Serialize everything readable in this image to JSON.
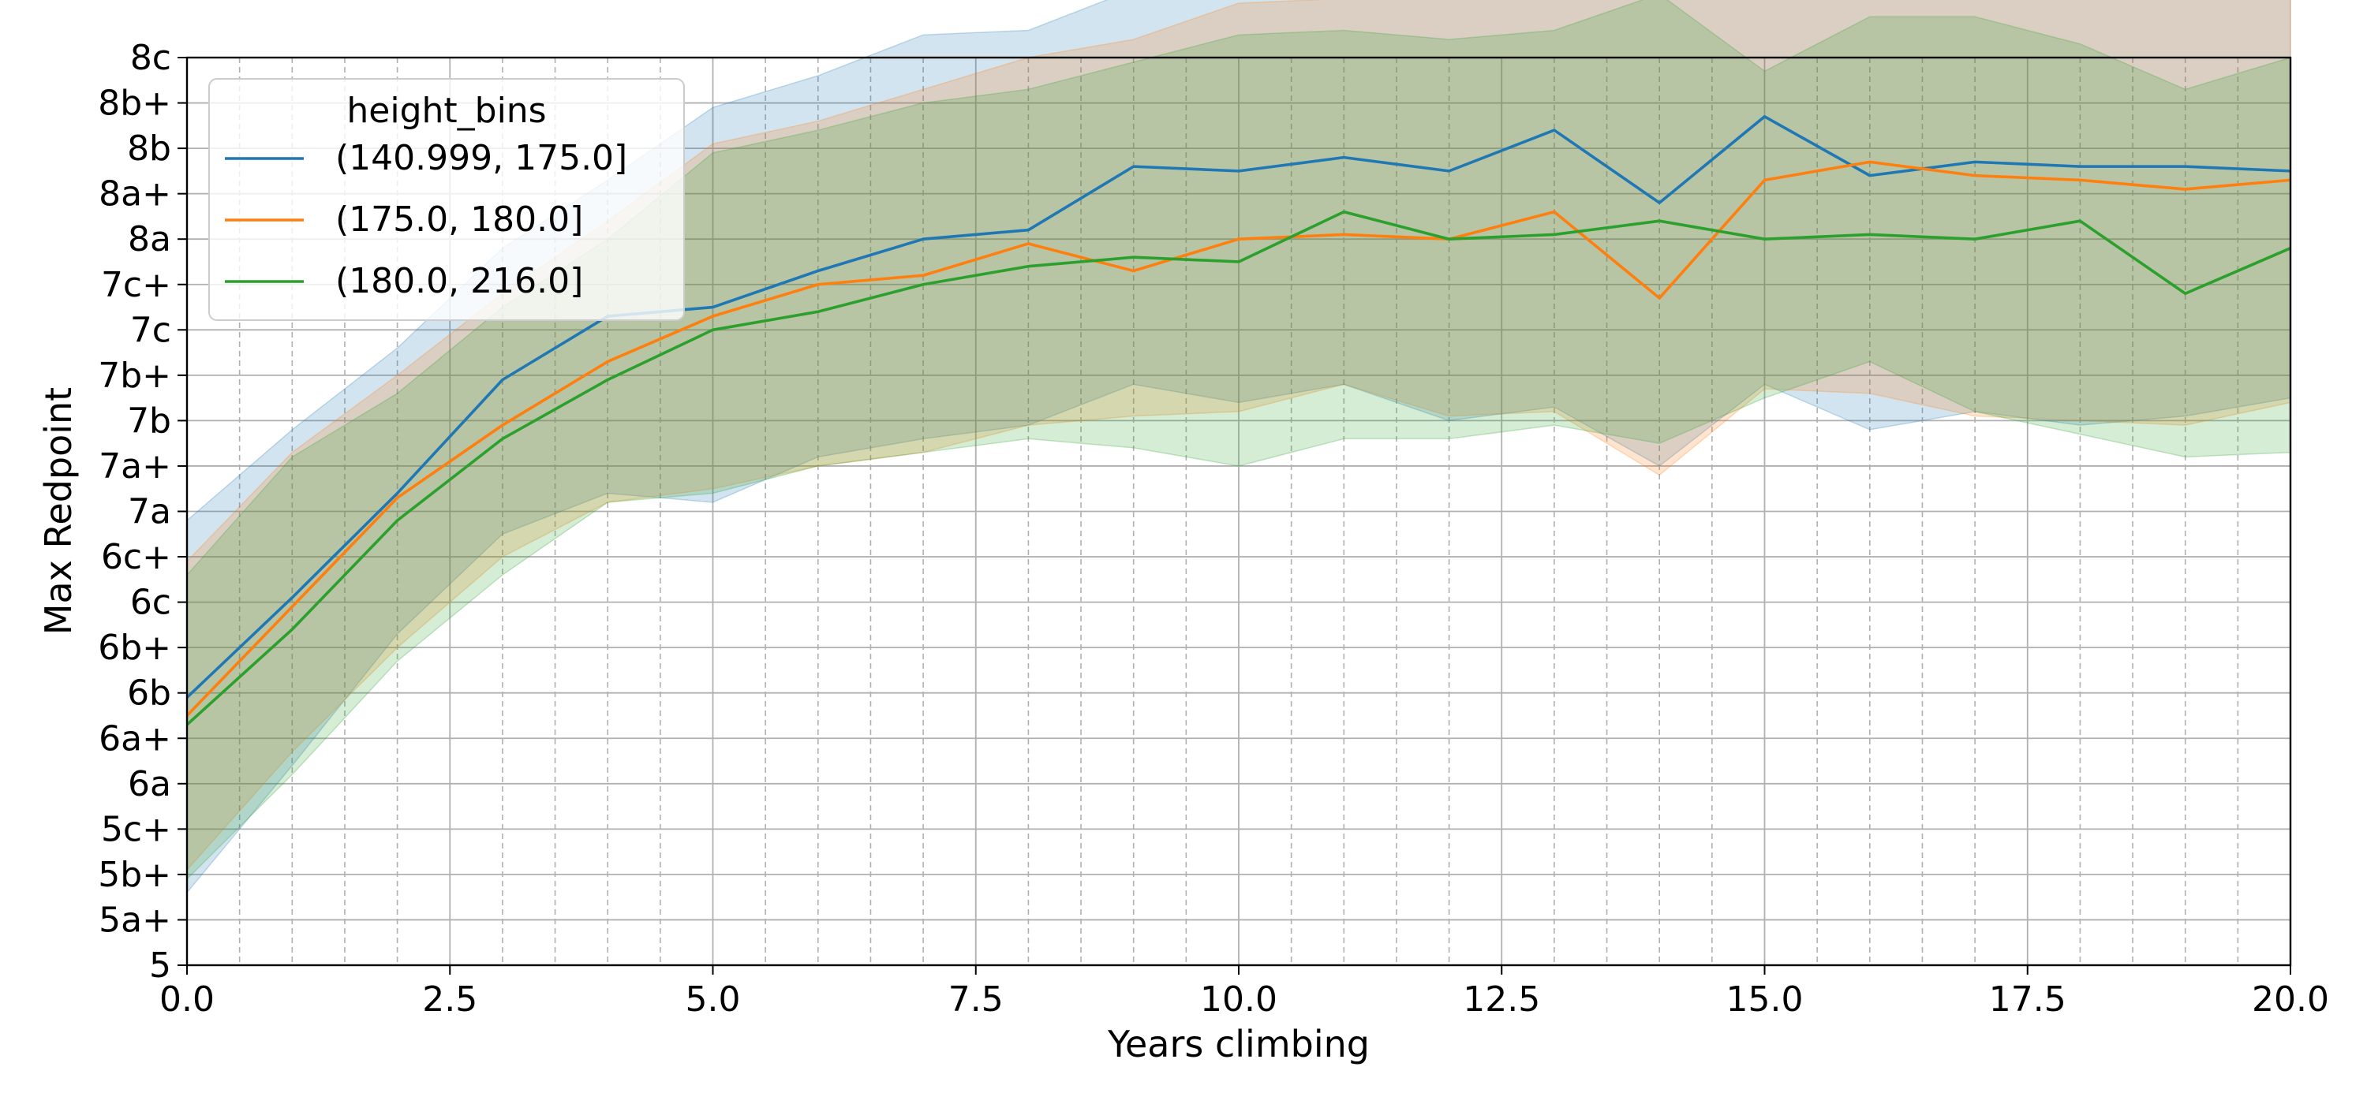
{
  "chart_data": {
    "type": "line",
    "xlabel": "Years climbing",
    "ylabel": "Max Redpoint",
    "xlim": [
      0,
      20
    ],
    "x_ticks": [
      "0.0",
      "2.5",
      "5.0",
      "7.5",
      "10.0",
      "12.5",
      "15.0",
      "17.5",
      "20.0"
    ],
    "y_ticks": [
      "5",
      "5a+",
      "5b+",
      "5c+",
      "6a",
      "6a+",
      "6b",
      "6b+",
      "6c",
      "6c+",
      "7a",
      "7a+",
      "7b",
      "7b+",
      "7c",
      "7c+",
      "8a",
      "8a+",
      "8b",
      "8b+",
      "8c"
    ],
    "ylim": [
      "5",
      "8c"
    ],
    "grid": true,
    "legend": {
      "title": "height_bins",
      "placement": "top-left"
    },
    "x": [
      0,
      1,
      2,
      3,
      4,
      5,
      6,
      7,
      8,
      9,
      10,
      11,
      12,
      13,
      14,
      15,
      16,
      17,
      18,
      19,
      20
    ],
    "series": [
      {
        "name": "(140.999, 175.0]",
        "color": "#1f77b4",
        "values": [
          5.9,
          8.1,
          10.4,
          12.9,
          14.3,
          14.5,
          15.3,
          16.0,
          16.2,
          17.6,
          17.5,
          17.8,
          17.5,
          18.4,
          16.8,
          18.7,
          17.4,
          17.7,
          17.6,
          17.6,
          17.5
        ],
        "band_upper": [
          9.8,
          11.8,
          13.6,
          15.8,
          17.3,
          18.9,
          19.6,
          20.5,
          20.6,
          21.5,
          21.9,
          22.0,
          21.5,
          22.2,
          21.9,
          23.3,
          23.0,
          22.2,
          21.9,
          22.0,
          21.6
        ],
        "band_lower": [
          1.6,
          4.4,
          7.3,
          9.5,
          10.4,
          10.2,
          11.2,
          11.6,
          11.9,
          12.8,
          12.4,
          12.8,
          12.0,
          12.3,
          11.0,
          12.8,
          11.8,
          12.2,
          11.9,
          12.1,
          12.5
        ]
      },
      {
        "name": "(175.0, 180.0]",
        "color": "#ff7f0e",
        "values": [
          5.5,
          7.9,
          10.3,
          11.9,
          13.3,
          14.3,
          15.0,
          15.2,
          15.9,
          15.3,
          16.0,
          16.1,
          16.0,
          16.6,
          14.7,
          17.3,
          17.7,
          17.4,
          17.3,
          17.1,
          17.3
        ],
        "band_upper": [
          8.9,
          11.3,
          13.0,
          14.8,
          16.4,
          18.1,
          18.6,
          19.3,
          20.0,
          20.4,
          21.2,
          21.3,
          21.6,
          21.6,
          21.8,
          21.7,
          21.9,
          21.7,
          21.8,
          21.7,
          21.4
        ],
        "band_lower": [
          2.1,
          4.7,
          7.0,
          9.0,
          10.2,
          10.5,
          11.0,
          11.3,
          11.9,
          12.1,
          12.2,
          12.8,
          12.1,
          12.2,
          10.8,
          12.7,
          12.6,
          12.1,
          12.0,
          11.9,
          12.4
        ]
      },
      {
        "name": "(180.0, 216.0]",
        "color": "#2ca02c",
        "values": [
          5.3,
          7.4,
          9.8,
          11.6,
          12.9,
          14.0,
          14.4,
          15.0,
          15.4,
          15.6,
          15.5,
          16.6,
          16.0,
          16.1,
          16.4,
          16.0,
          16.1,
          16.0,
          16.4,
          14.8,
          15.8
        ],
        "band_upper": [
          8.6,
          11.2,
          12.6,
          14.5,
          16.0,
          17.9,
          18.4,
          19.0,
          19.3,
          19.9,
          20.5,
          20.6,
          20.4,
          20.6,
          21.4,
          19.7,
          20.9,
          20.9,
          20.3,
          19.3,
          20.0
        ],
        "band_lower": [
          1.9,
          4.2,
          6.7,
          8.6,
          10.2,
          10.4,
          11.0,
          11.3,
          11.6,
          11.4,
          11.0,
          11.6,
          11.6,
          11.9,
          11.5,
          12.5,
          13.3,
          12.2,
          11.7,
          11.2,
          11.3
        ]
      }
    ]
  }
}
